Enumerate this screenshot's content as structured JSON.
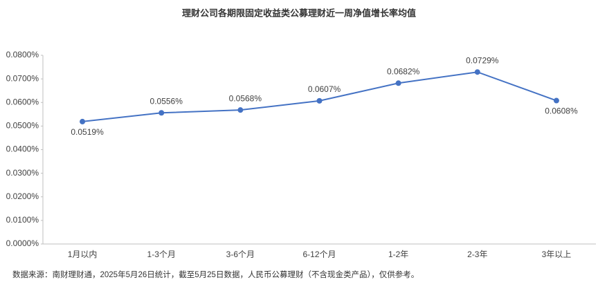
{
  "chart_data": {
    "type": "line",
    "title": "理财公司各期限固定收益类公募理财近一周净值增长率均值",
    "categories": [
      "1月以内",
      "1-3个月",
      "3-6个月",
      "6-12个月",
      "1-2年",
      "2-3年",
      "3年以上"
    ],
    "series": [
      {
        "name": "近一周净值增长率均值",
        "color": "#4472c4",
        "values": [
          0.0519,
          0.0556,
          0.0568,
          0.0607,
          0.0682,
          0.0729,
          0.0608
        ],
        "value_labels": [
          "0.0519%",
          "0.0556%",
          "0.0568%",
          "0.0607%",
          "0.0682%",
          "0.0729%",
          "0.0608%"
        ]
      }
    ],
    "ylim": [
      0,
      0.08
    ],
    "yticks": [
      {
        "value": 0,
        "label": "0.0000%"
      },
      {
        "value": 0.01,
        "label": "0.0100%"
      },
      {
        "value": 0.02,
        "label": "0.0200%"
      },
      {
        "value": 0.03,
        "label": "0.0300%"
      },
      {
        "value": 0.04,
        "label": "0.0400%"
      },
      {
        "value": 0.05,
        "label": "0.0500%"
      },
      {
        "value": 0.06,
        "label": "0.0600%"
      },
      {
        "value": 0.07,
        "label": "0.0700%"
      },
      {
        "value": 0.08,
        "label": "0.0800%"
      }
    ],
    "grid": false,
    "note": "数据来源：南财理财通，2025年5月26日统计，截至5月25日数据，人民币公募理财（不含现金类产品），仅供参考。"
  }
}
